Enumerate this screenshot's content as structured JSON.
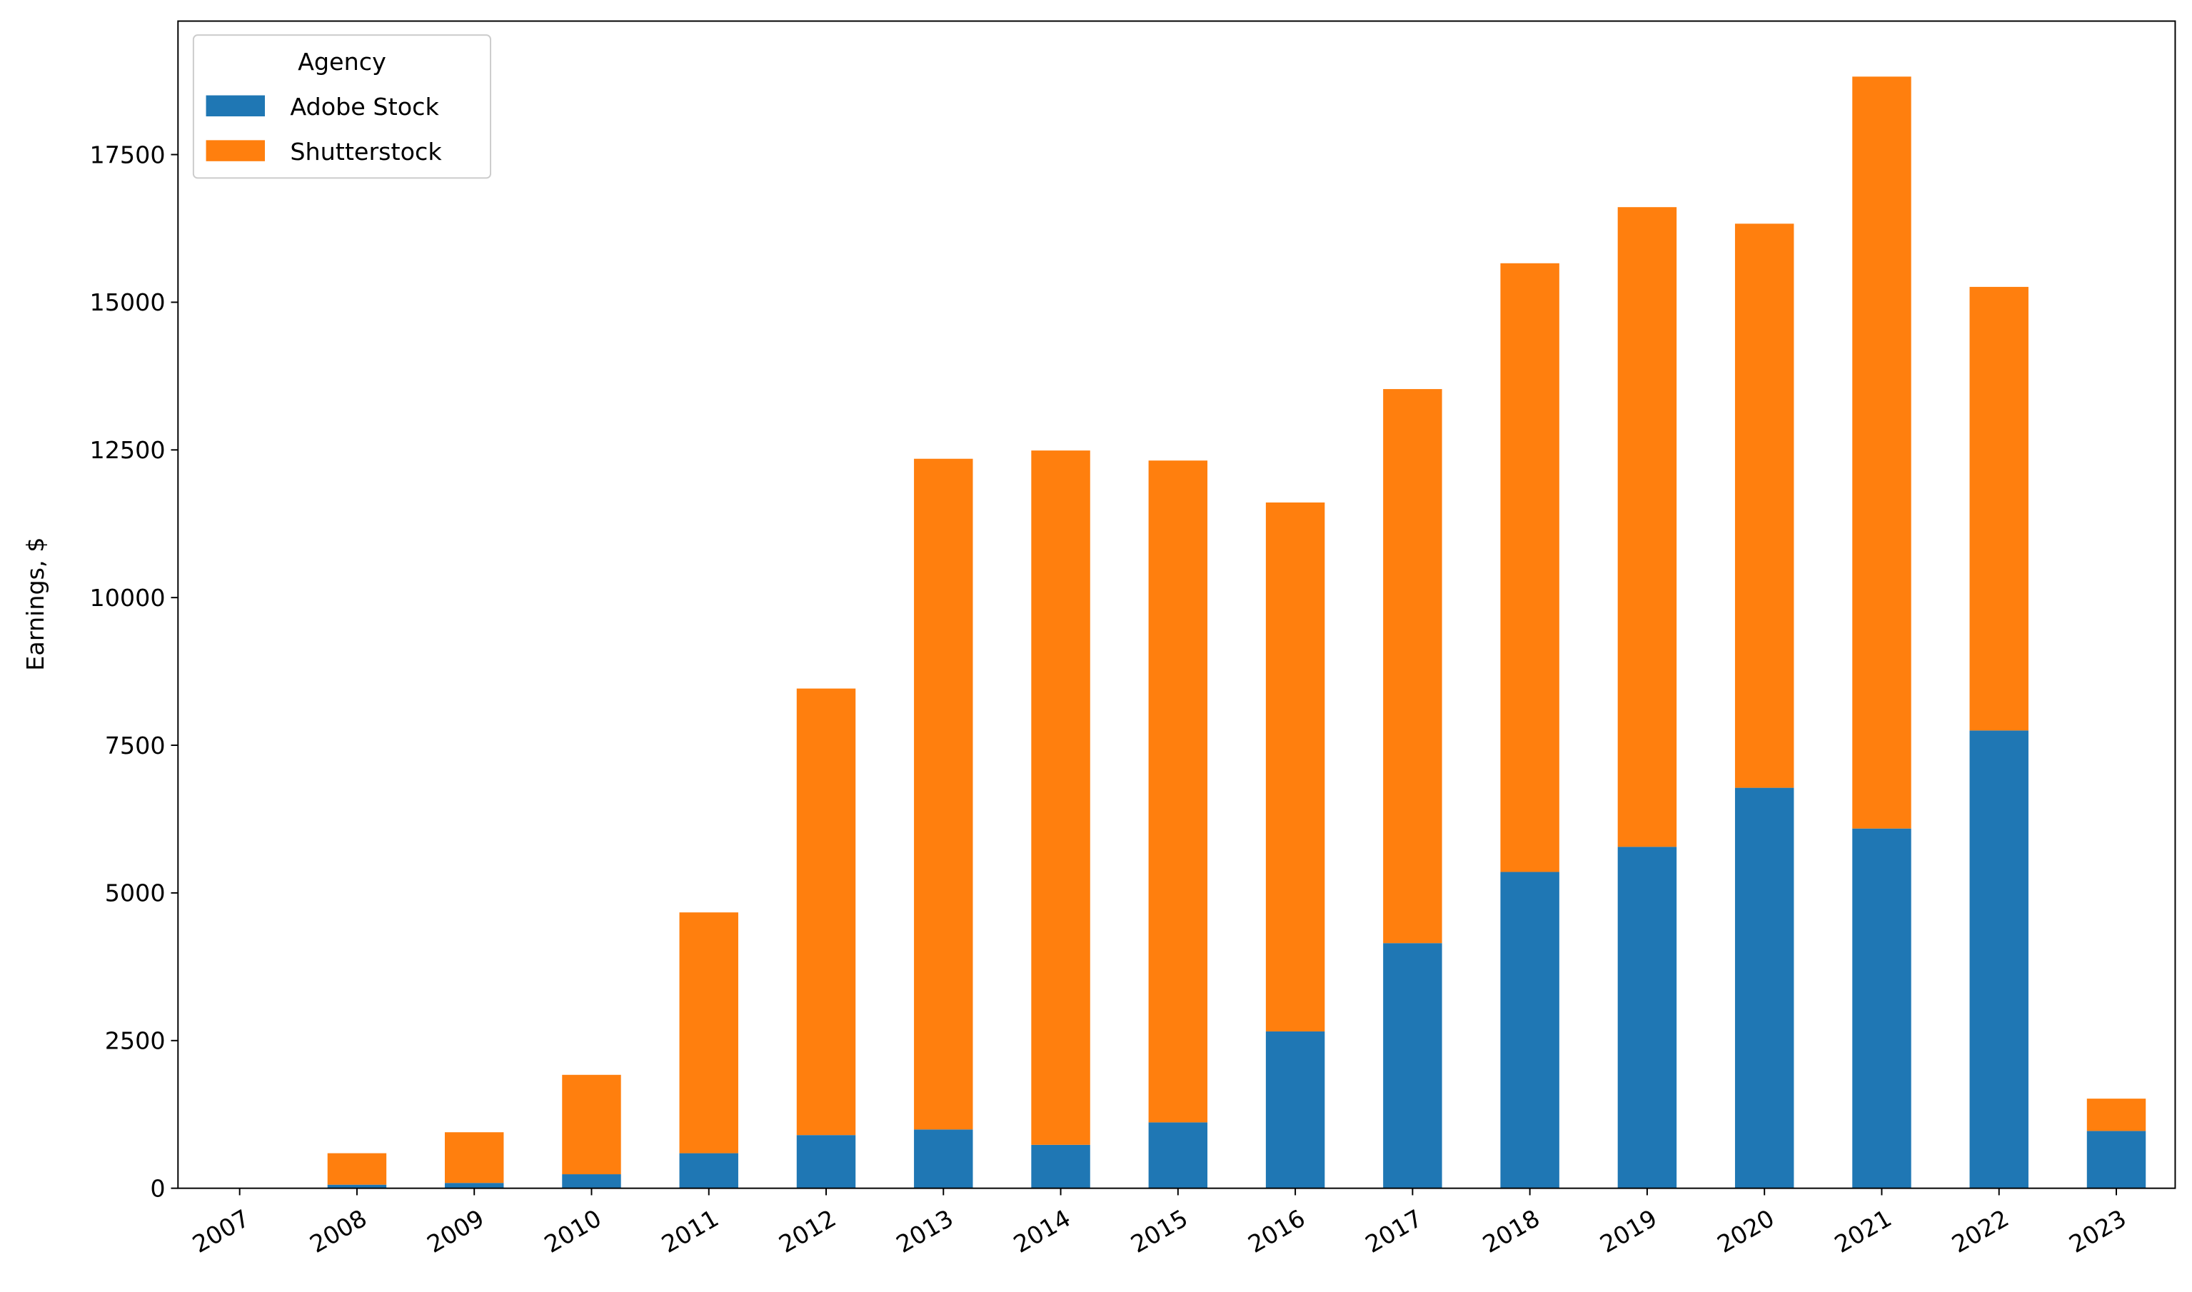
{
  "chart_data": {
    "type": "bar",
    "stacked": true,
    "title": "",
    "xlabel": "",
    "ylabel": "Earnings, $",
    "ylim": [
      0,
      19760
    ],
    "yticks": [
      0,
      2500,
      5000,
      7500,
      10000,
      12500,
      15000,
      17500
    ],
    "grid": false,
    "legend": {
      "title": "Agency",
      "placement": "top-left"
    },
    "categories": [
      "2007",
      "2008",
      "2009",
      "2010",
      "2011",
      "2012",
      "2013",
      "2014",
      "2015",
      "2016",
      "2017",
      "2018",
      "2019",
      "2020",
      "2021",
      "2022",
      "2023"
    ],
    "series": [
      {
        "name": "Adobe Stock",
        "color": "#1f77b4",
        "values": [
          0,
          60,
          90,
          237,
          593,
          900,
          995,
          735,
          1115,
          2655,
          4150,
          5355,
          5780,
          6780,
          6090,
          7750,
          970
        ]
      },
      {
        "name": "Shutterstock",
        "color": "#ff7f0e",
        "values": [
          0,
          533,
          858,
          1683,
          4077,
          7560,
          11355,
          11755,
          11205,
          8955,
          9380,
          10305,
          10830,
          9550,
          12730,
          7510,
          547
        ]
      }
    ]
  }
}
